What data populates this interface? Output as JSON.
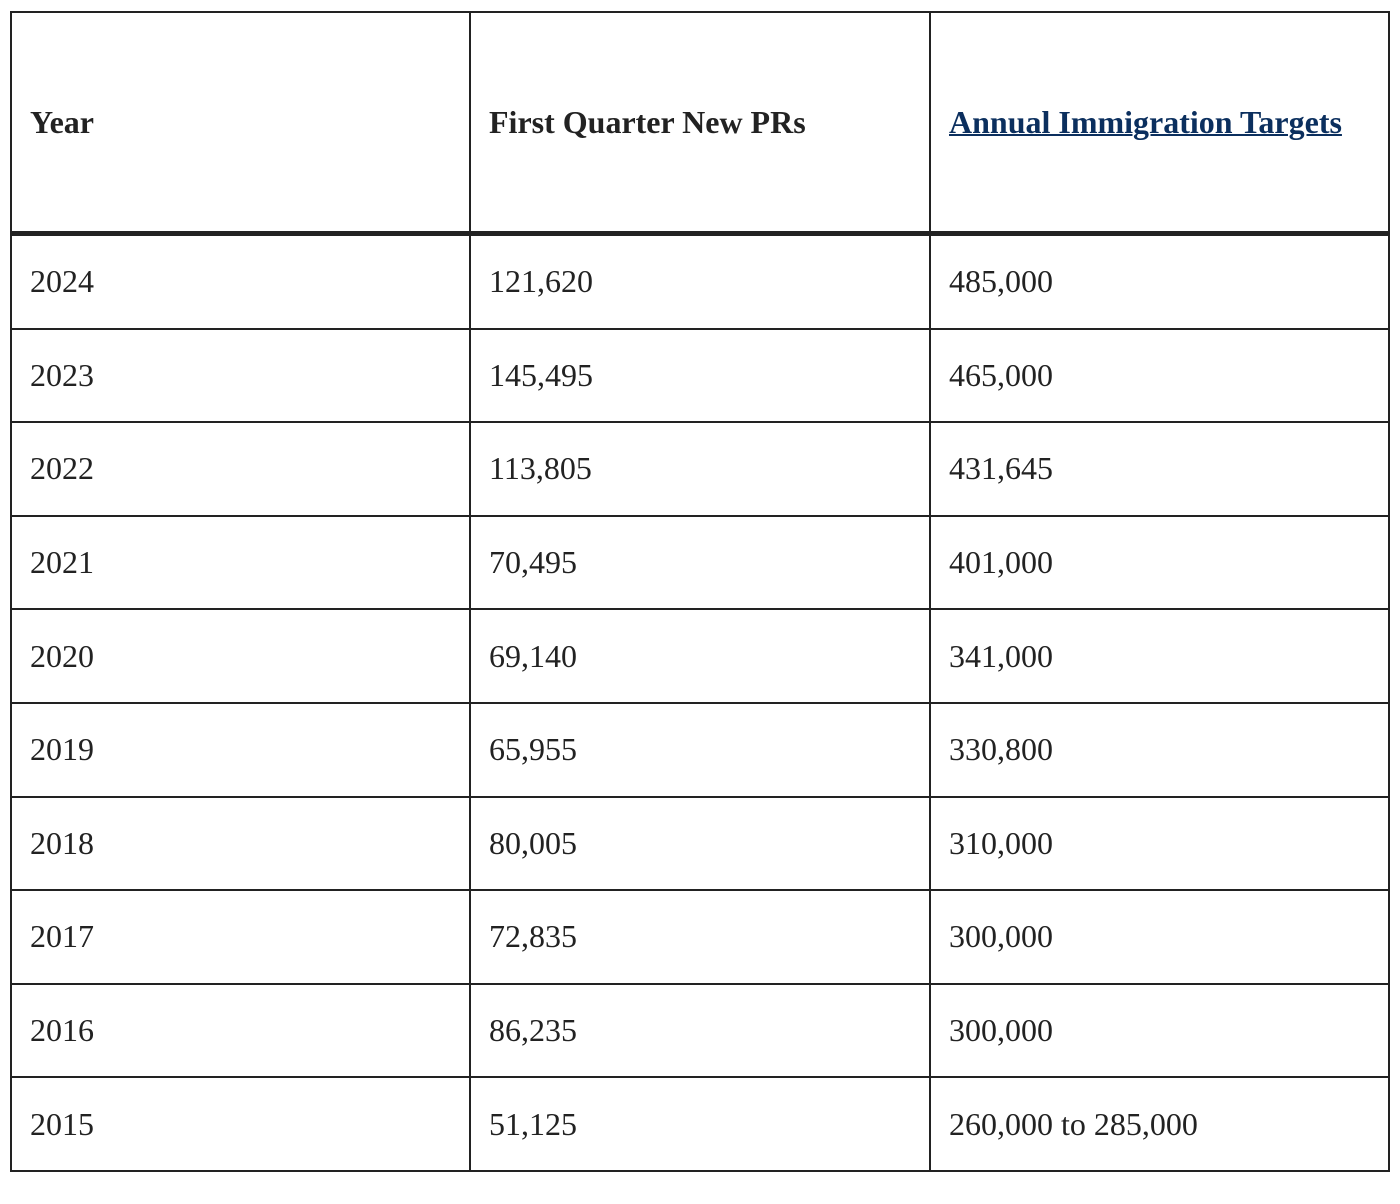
{
  "table": {
    "headers": [
      "Year",
      "First Quarter New PRs",
      "Annual Immigration Targets"
    ],
    "rows": [
      [
        "2024",
        "121,620",
        "485,000"
      ],
      [
        "2023",
        "145,495",
        "465,000"
      ],
      [
        "2022",
        "113,805",
        "431,645"
      ],
      [
        "2021",
        "70,495",
        "401,000"
      ],
      [
        "2020",
        "69,140",
        "341,000"
      ],
      [
        "2019",
        "65,955",
        "330,800"
      ],
      [
        "2018",
        "80,005",
        "310,000"
      ],
      [
        "2017",
        "72,835",
        "300,000"
      ],
      [
        "2016",
        "86,235",
        "300,000"
      ],
      [
        "2015",
        "51,125",
        "260,000 to 285,000"
      ]
    ]
  }
}
